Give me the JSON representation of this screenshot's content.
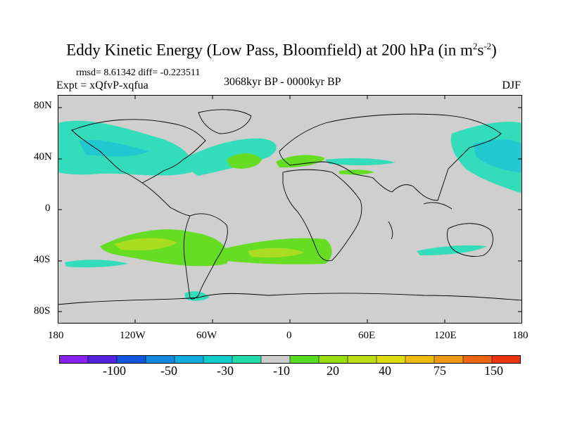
{
  "title": {
    "main": "Eddy Kinetic Energy (Low Pass, Bloomfield) at 200 hPa (in m",
    "exp1": "2",
    "mid": "s",
    "exp2": "-2",
    "close": ")"
  },
  "stats_line": "rmsd= 8.61342 diff= -0.223511",
  "expt_line": "Expt = xQfvP-xqfua",
  "period_line": "3068kyr BP - 0000kyr BP",
  "season": "DJF",
  "y_axis_labels": [
    "80N",
    "40N",
    "0",
    "40S",
    "80S"
  ],
  "x_axis_labels": [
    "180",
    "120W",
    "60W",
    "0",
    "60E",
    "120E",
    "180"
  ],
  "colors": {
    "land_sea_background": "#cfcfcf",
    "coastline": "#000000",
    "positive_light": "#66dd22",
    "positive_mid": "#aadd22",
    "negative_light": "#33ddbb",
    "negative_mid": "#22c8d0"
  },
  "colorbar": {
    "colors": [
      "#8822ee",
      "#5522dd",
      "#1155dd",
      "#1188dd",
      "#11aadd",
      "#11cccc",
      "#22ddaa",
      "#cccccc",
      "#55dd22",
      "#99dd11",
      "#bbdd11",
      "#dddd11",
      "#eebb11",
      "#ee9911",
      "#ee6611",
      "#ee3311"
    ],
    "labels": [
      "-100",
      "-50",
      "-30",
      "-10",
      "20",
      "40",
      "75",
      "150"
    ]
  }
}
